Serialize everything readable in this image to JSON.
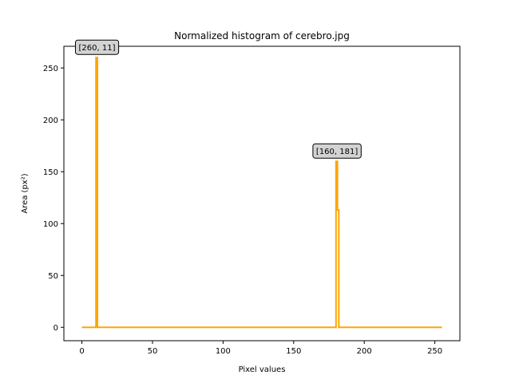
{
  "chart_data": {
    "type": "line",
    "title": "Normalized histogram of cerebro.jpg",
    "xlabel": "Pixel values",
    "ylabel": "Area (px²)",
    "xlim": [
      -12.75,
      267.75
    ],
    "ylim": [
      -12.9,
      270.9
    ],
    "xticks": [
      0,
      50,
      100,
      150,
      200,
      250
    ],
    "yticks": [
      0,
      50,
      100,
      150,
      200,
      250
    ],
    "grid": false,
    "line_color": "#ffa500",
    "series": [
      {
        "x": [
          0,
          10,
          10,
          11,
          11,
          12,
          12,
          180,
          180,
          181,
          181,
          182,
          182,
          255
        ],
        "y": [
          0,
          0,
          260,
          260,
          0,
          0,
          0,
          0,
          160,
          160,
          113,
          113,
          0,
          0
        ]
      }
    ],
    "annotations": [
      {
        "text": "[260, 11]",
        "x": 11,
        "y": 260
      },
      {
        "text": "[160, 181]",
        "x": 181,
        "y": 160
      }
    ]
  }
}
